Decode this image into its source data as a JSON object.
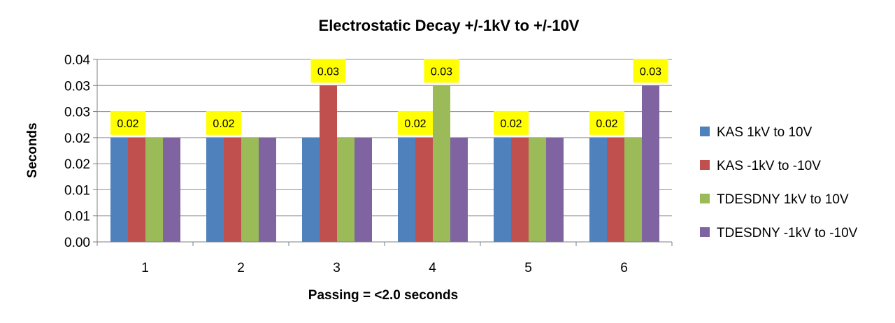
{
  "chart_data": {
    "type": "bar",
    "title": "Electrostatic Decay +/-1kV to +/-10V",
    "xlabel": "Passing = <2.0 seconds",
    "ylabel": "Seconds",
    "categories": [
      "1",
      "2",
      "3",
      "4",
      "5",
      "6"
    ],
    "yticks": [
      "0.00",
      "0.01",
      "0.01",
      "0.02",
      "0.02",
      "0.03",
      "0.03",
      "0.04"
    ],
    "ylim": [
      0,
      0.035
    ],
    "grid": true,
    "legend_position": "right",
    "series": [
      {
        "name": "KAS 1kV to 10V",
        "color": "#4F81BD",
        "values": [
          0.02,
          0.02,
          0.02,
          0.02,
          0.02,
          0.02
        ]
      },
      {
        "name": "KAS -1kV to -10V",
        "color": "#C0504D",
        "values": [
          0.02,
          0.02,
          0.03,
          0.02,
          0.02,
          0.02
        ]
      },
      {
        "name": "TDESDNY 1kV to 10V",
        "color": "#9BBB59",
        "values": [
          0.02,
          0.02,
          0.02,
          0.03,
          0.02,
          0.02
        ]
      },
      {
        "name": "TDESDNY -1kV to -10V",
        "color": "#8064A2",
        "values": [
          0.02,
          0.02,
          0.02,
          0.02,
          0.02,
          0.03
        ]
      }
    ],
    "data_labels": [
      {
        "category": "1",
        "text": "0.02"
      },
      {
        "category": "2",
        "text": "0.02"
      },
      {
        "category": "3",
        "text": "0.03"
      },
      {
        "category": "4",
        "text": "0.02"
      },
      {
        "category": "4",
        "text": "0.03"
      },
      {
        "category": "5",
        "text": "0.02"
      },
      {
        "category": "6",
        "text": "0.02"
      },
      {
        "category": "6",
        "text": "0.03"
      }
    ],
    "label_box_color": "#FFFF00"
  }
}
